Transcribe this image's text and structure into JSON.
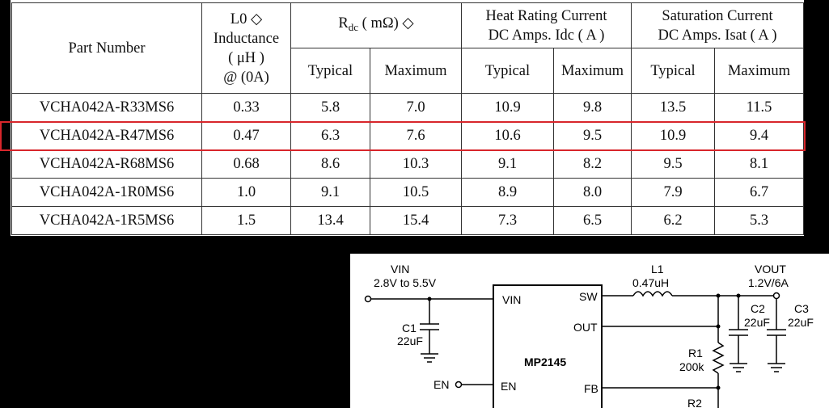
{
  "table": {
    "headers": {
      "part_number": "Part Number",
      "inductance_line1": "L0 ◇",
      "inductance_line2": "Inductance",
      "inductance_line3": "( μH )",
      "inductance_line4": "@ (0A)",
      "rdc_prefix": "R",
      "rdc_sub": "dc",
      "rdc_suffix": "( mΩ) ◇",
      "heat_line1": "Heat Rating Current",
      "heat_line2": "DC Amps. Idc ( A )",
      "sat_line1": "Saturation Current",
      "sat_line2": "DC Amps. Isat ( A )",
      "typical": "Typical",
      "maximum": "Maximum"
    },
    "rows": [
      {
        "part": "VCHA042A-R33MS6",
        "l0": "0.33",
        "rdc_typ": "5.8",
        "rdc_max": "7.0",
        "heat_typ": "10.9",
        "heat_max": "9.8",
        "sat_typ": "13.5",
        "sat_max": "11.5"
      },
      {
        "part": "VCHA042A-R47MS6",
        "l0": "0.47",
        "rdc_typ": "6.3",
        "rdc_max": "7.6",
        "heat_typ": "10.6",
        "heat_max": "9.5",
        "sat_typ": "10.9",
        "sat_max": "9.4"
      },
      {
        "part": "VCHA042A-R68MS6",
        "l0": "0.68",
        "rdc_typ": "8.6",
        "rdc_max": "10.3",
        "heat_typ": "9.1",
        "heat_max": "8.2",
        "sat_typ": "9.5",
        "sat_max": "8.1"
      },
      {
        "part": "VCHA042A-1R0MS6",
        "l0": "1.0",
        "rdc_typ": "9.1",
        "rdc_max": "10.5",
        "heat_typ": "8.9",
        "heat_max": "8.0",
        "sat_typ": "7.9",
        "sat_max": "6.7"
      },
      {
        "part": "VCHA042A-1R5MS6",
        "l0": "1.5",
        "rdc_typ": "13.4",
        "rdc_max": "15.4",
        "heat_typ": "7.3",
        "heat_max": "6.5",
        "sat_typ": "6.2",
        "sat_max": "5.3"
      }
    ],
    "highlight_color": "#d8262b"
  },
  "schematic": {
    "vin_label": "VIN",
    "vin_range": "2.8V to  5.5V",
    "l1_label": "L1",
    "l1_value": "0.47uH",
    "vout_label": "VOUT",
    "vout_value": "1.2V/6A",
    "c1_label": "C1",
    "c1_value": "22uF",
    "c2_label": "C2",
    "c2_value": "22uF",
    "c3_label": "C3",
    "c3_value": "22uF",
    "r1_label": "R1",
    "r1_value": "200k",
    "r2_label": "R2",
    "en_label": "EN",
    "chip_name": "MP2145",
    "pin_vin": "VIN",
    "pin_sw": "SW",
    "pin_out": "OUT",
    "pin_en": "EN",
    "pin_fb": "FB"
  }
}
